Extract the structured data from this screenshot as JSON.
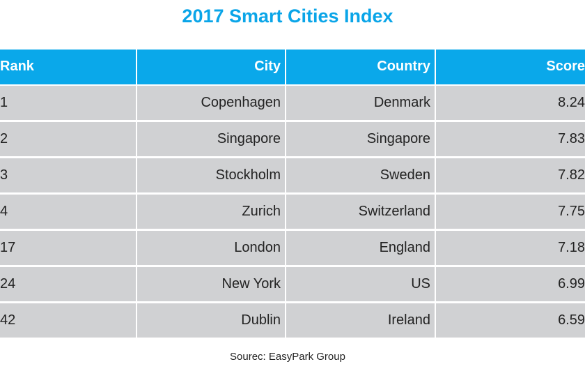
{
  "title": "2017 Smart Cities Index",
  "source": "Sourec: EasyPark Group",
  "colors": {
    "accent": "#0aa8ea",
    "row_bg": "#d0d1d3",
    "title": "#0aa5e8"
  },
  "chart_data": {
    "type": "table",
    "title": "2017 Smart Cities Index",
    "columns": [
      "Rank",
      "City",
      "Country",
      "Score"
    ],
    "rows": [
      [
        "1",
        "Copenhagen",
        "Denmark",
        "8.24"
      ],
      [
        "2",
        "Singapore",
        "Singapore",
        "7.83"
      ],
      [
        "3",
        "Stockholm",
        "Sweden",
        "7.82"
      ],
      [
        "4",
        "Zurich",
        "Switzerland",
        "7.75"
      ],
      [
        "17",
        "London",
        "England",
        "7.18"
      ],
      [
        "24",
        "New York",
        "US",
        "6.99"
      ],
      [
        "42",
        "Dublin",
        "Ireland",
        "6.59"
      ]
    ]
  }
}
